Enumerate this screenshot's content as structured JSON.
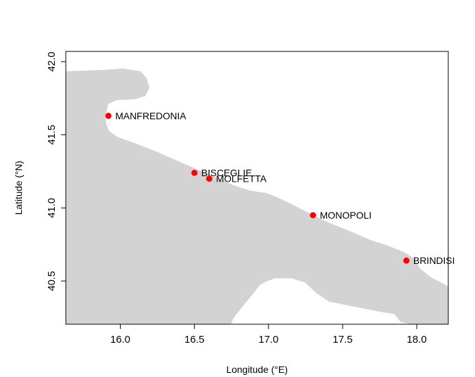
{
  "chart_data": {
    "type": "scatter",
    "title": "",
    "xlabel": "Longitude (°E)",
    "ylabel": "Latitude (°N)",
    "xlim": [
      15.6,
      18.2
    ],
    "ylim": [
      40.2,
      42.05
    ],
    "x_ticks": [
      "16.0",
      "16.5",
      "17.0",
      "17.5",
      "18.0"
    ],
    "y_ticks": [
      "40.5",
      "41.0",
      "41.5",
      "42.0"
    ],
    "grid": false,
    "land_color": "#d3d3d3",
    "point_color": "#ff0000",
    "points": [
      {
        "label": "MANFREDONIA",
        "x": 15.92,
        "y": 41.63
      },
      {
        "label": "BISCEGLIE",
        "x": 16.5,
        "y": 41.24
      },
      {
        "label": "MOLFETTA",
        "x": 16.6,
        "y": 41.2
      },
      {
        "label": "MONOPOLI",
        "x": 17.3,
        "y": 40.95
      },
      {
        "label": "BRINDISI",
        "x": 17.93,
        "y": 40.64
      }
    ]
  }
}
